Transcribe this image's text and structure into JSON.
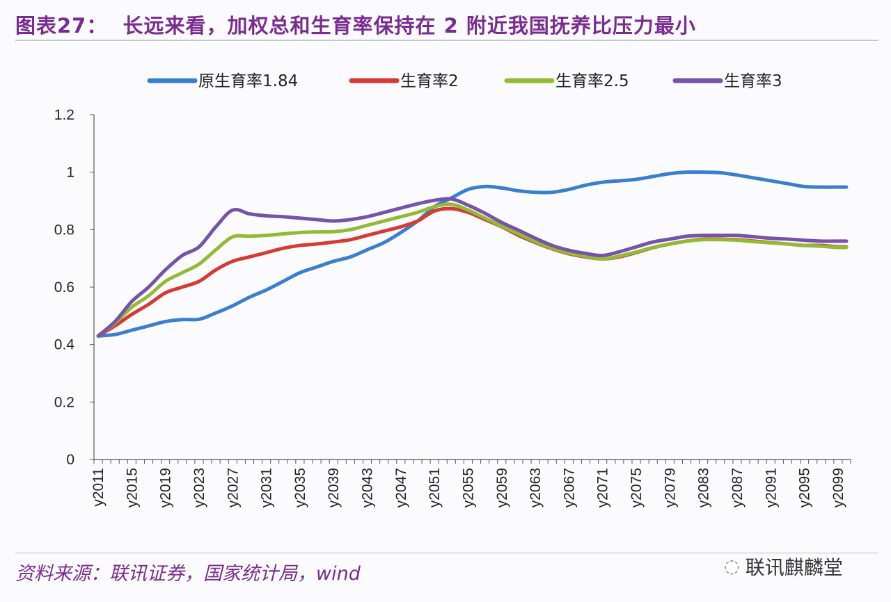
{
  "title": "图表27：  长远来看，加权总和生育率保持在 2 附近我国抚养比压力最小",
  "source": "资料来源：联讯证券，国家统计局，wind",
  "watermark": "联讯麒麟堂",
  "chart_data": {
    "type": "line",
    "title": "",
    "xlabel": "",
    "ylabel": "",
    "ylim": [
      0,
      1.2
    ],
    "yticks": [
      "0",
      "0.2",
      "0.4",
      "0.6",
      "0.8",
      "1",
      "1.2"
    ],
    "x_range": [
      2011,
      2100
    ],
    "xtick_labels": [
      "y2011",
      "y2015",
      "y2019",
      "y2023",
      "y2027",
      "y2031",
      "y2035",
      "y2039",
      "y2043",
      "y2047",
      "y2051",
      "y2055",
      "y2059",
      "y2063",
      "y2067",
      "y2071",
      "y2075",
      "y2079",
      "y2083",
      "y2087",
      "y2091",
      "y2095",
      "y2099"
    ],
    "legend_position": "top",
    "grid": false,
    "x": [
      2011,
      2013,
      2015,
      2017,
      2019,
      2021,
      2023,
      2025,
      2027,
      2029,
      2031,
      2033,
      2035,
      2037,
      2039,
      2041,
      2043,
      2045,
      2047,
      2049,
      2051,
      2053,
      2055,
      2057,
      2059,
      2061,
      2063,
      2065,
      2067,
      2069,
      2071,
      2073,
      2075,
      2077,
      2079,
      2081,
      2083,
      2085,
      2087,
      2089,
      2091,
      2093,
      2095,
      2097,
      2099,
      2100
    ],
    "series": [
      {
        "name": "原生育率1.84",
        "color": "#3a7fcf",
        "values": [
          0.43,
          0.435,
          0.45,
          0.465,
          0.48,
          0.487,
          0.488,
          0.51,
          0.535,
          0.565,
          0.59,
          0.62,
          0.65,
          0.67,
          0.69,
          0.705,
          0.73,
          0.755,
          0.79,
          0.83,
          0.88,
          0.91,
          0.94,
          0.95,
          0.945,
          0.935,
          0.93,
          0.93,
          0.94,
          0.955,
          0.965,
          0.97,
          0.975,
          0.985,
          0.995,
          1.0,
          1.0,
          0.998,
          0.99,
          0.98,
          0.97,
          0.96,
          0.95,
          0.948,
          0.948,
          0.948
        ]
      },
      {
        "name": "生育率2",
        "color": "#d63a35",
        "values": [
          0.43,
          0.465,
          0.505,
          0.54,
          0.58,
          0.6,
          0.62,
          0.66,
          0.69,
          0.705,
          0.72,
          0.735,
          0.745,
          0.75,
          0.757,
          0.765,
          0.78,
          0.795,
          0.81,
          0.83,
          0.865,
          0.873,
          0.86,
          0.835,
          0.81,
          0.78,
          0.755,
          0.733,
          0.716,
          0.705,
          0.698,
          0.705,
          0.72,
          0.737,
          0.75,
          0.76,
          0.767,
          0.767,
          0.765,
          0.76,
          0.755,
          0.75,
          0.745,
          0.745,
          0.74,
          0.74
        ]
      },
      {
        "name": "生育率2.5",
        "color": "#92bb35",
        "values": [
          0.43,
          0.475,
          0.53,
          0.57,
          0.62,
          0.65,
          0.68,
          0.73,
          0.775,
          0.777,
          0.78,
          0.785,
          0.79,
          0.792,
          0.793,
          0.8,
          0.815,
          0.83,
          0.845,
          0.86,
          0.88,
          0.888,
          0.868,
          0.84,
          0.812,
          0.785,
          0.758,
          0.735,
          0.718,
          0.707,
          0.698,
          0.708,
          0.722,
          0.738,
          0.75,
          0.76,
          0.765,
          0.765,
          0.763,
          0.758,
          0.754,
          0.75,
          0.745,
          0.742,
          0.738,
          0.738
        ]
      },
      {
        "name": "生育率3",
        "color": "#7652a8",
        "values": [
          0.43,
          0.48,
          0.55,
          0.6,
          0.66,
          0.71,
          0.74,
          0.81,
          0.868,
          0.855,
          0.848,
          0.845,
          0.84,
          0.835,
          0.83,
          0.835,
          0.845,
          0.86,
          0.875,
          0.89,
          0.902,
          0.907,
          0.885,
          0.857,
          0.825,
          0.798,
          0.77,
          0.745,
          0.728,
          0.717,
          0.71,
          0.723,
          0.74,
          0.757,
          0.767,
          0.777,
          0.78,
          0.78,
          0.78,
          0.775,
          0.77,
          0.767,
          0.763,
          0.76,
          0.76,
          0.76
        ]
      }
    ]
  }
}
